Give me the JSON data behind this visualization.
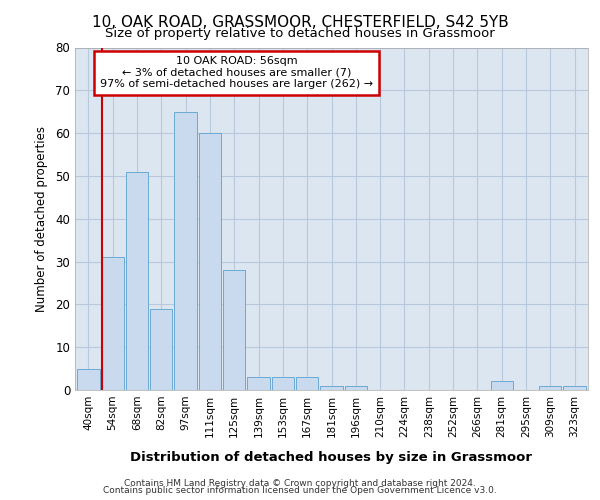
{
  "title_line1": "10, OAK ROAD, GRASSMOOR, CHESTERFIELD, S42 5YB",
  "title_line2": "Size of property relative to detached houses in Grassmoor",
  "xlabel": "Distribution of detached houses by size in Grassmoor",
  "ylabel": "Number of detached properties",
  "bar_labels": [
    "40sqm",
    "54sqm",
    "68sqm",
    "82sqm",
    "97sqm",
    "111sqm",
    "125sqm",
    "139sqm",
    "153sqm",
    "167sqm",
    "181sqm",
    "196sqm",
    "210sqm",
    "224sqm",
    "238sqm",
    "252sqm",
    "266sqm",
    "281sqm",
    "295sqm",
    "309sqm",
    "323sqm"
  ],
  "bar_values": [
    5,
    31,
    51,
    19,
    65,
    60,
    28,
    3,
    3,
    3,
    1,
    1,
    0,
    0,
    0,
    0,
    0,
    2,
    0,
    1,
    1
  ],
  "bar_color": "#c9d9ee",
  "bar_edge_color": "#6aaad4",
  "grid_color": "#b8c8dd",
  "background_color": "#dce6f1",
  "annotation_box_text": "10 OAK ROAD: 56sqm\n← 3% of detached houses are smaller (7)\n97% of semi-detached houses are larger (262) →",
  "annotation_box_color": "white",
  "annotation_box_edge_color": "#cc0000",
  "annotation_vline_color": "#cc0000",
  "vline_bar_index": 1,
  "ylim": [
    0,
    80
  ],
  "yticks": [
    0,
    10,
    20,
    30,
    40,
    50,
    60,
    70,
    80
  ],
  "footer_line1": "Contains HM Land Registry data © Crown copyright and database right 2024.",
  "footer_line2": "Contains public sector information licensed under the Open Government Licence v3.0."
}
